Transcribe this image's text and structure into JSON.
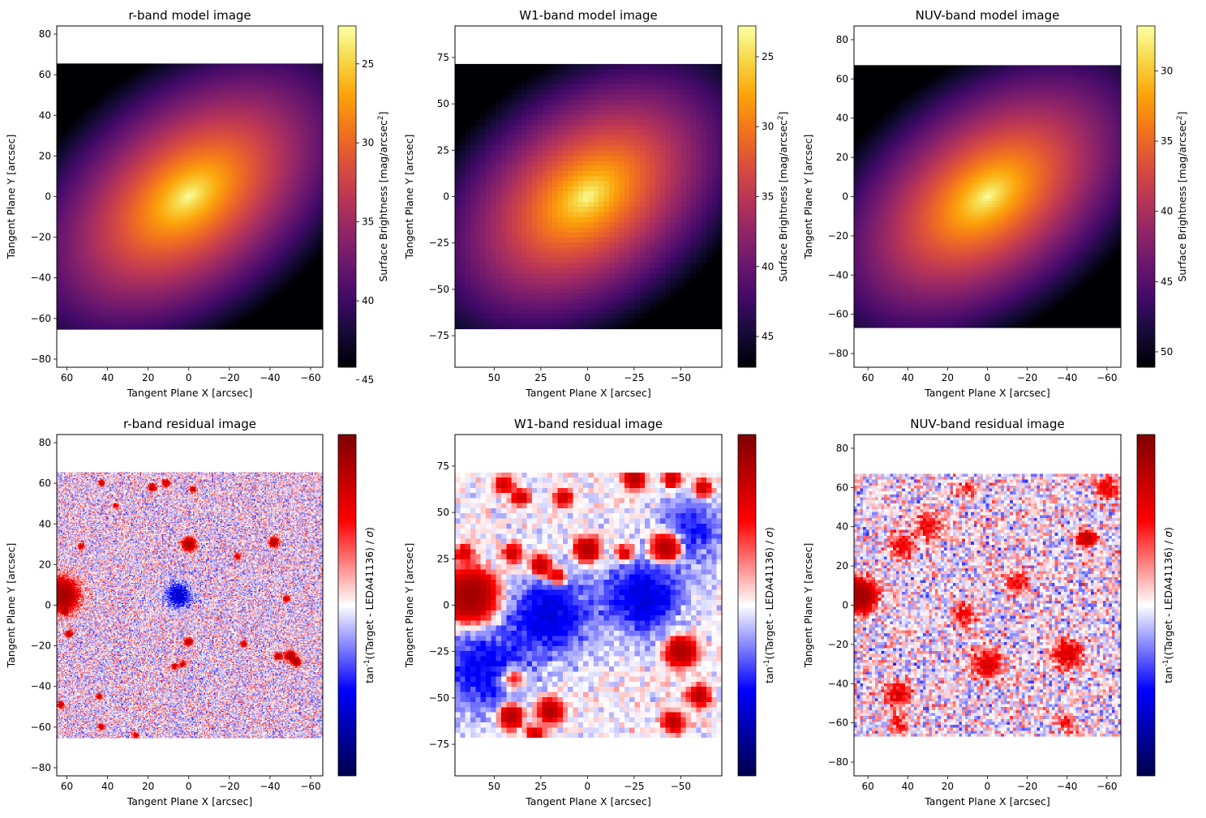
{
  "chart_data": [
    {
      "type": "heatmap",
      "title": "r-band model image",
      "xlabel": "Tangent Plane X [arcsec]",
      "ylabel": "Tangent Plane Y [arcsec]",
      "xlim": [
        65,
        -66
      ],
      "ylim": [
        -84,
        84
      ],
      "extent": {
        "x": [
          65,
          -66
        ],
        "y": [
          -65.5,
          65.5
        ]
      },
      "xticks": [
        60,
        40,
        20,
        0,
        -20,
        -40,
        -60
      ],
      "xtick_labels": [
        "60",
        "40",
        "20",
        "0",
        "−20",
        "−40",
        "−60"
      ],
      "yticks": [
        -80,
        -60,
        -40,
        -20,
        0,
        20,
        40,
        60,
        80
      ],
      "ytick_labels": [
        "−80",
        "−60",
        "−40",
        "−20",
        "0",
        "20",
        "40",
        "60",
        "80"
      ],
      "colorbar": {
        "colormap": "inferno",
        "label": "Surface Brightness [mag/arcsec$^2$]",
        "inverted": true,
        "range": [
          44.2,
          22.6
        ],
        "ticks": [
          25,
          30,
          35,
          40,
          45
        ],
        "tick_labels": [
          "25",
          "30",
          "35",
          "40",
          "45"
        ]
      },
      "model": {
        "center": [
          0,
          0
        ],
        "peak_mag": 22.6,
        "position_angle_deg": 38,
        "axis_ratio": 0.6
      },
      "pixel_scale": 1.0
    },
    {
      "type": "heatmap",
      "title": "W1-band model image",
      "xlabel": "Tangent Plane X [arcsec]",
      "ylabel": "Tangent Plane Y [arcsec]",
      "xlim": [
        71,
        -72
      ],
      "ylim": [
        -92,
        92
      ],
      "extent": {
        "x": [
          71,
          -72
        ],
        "y": [
          -71.5,
          71.5
        ]
      },
      "xticks": [
        50,
        25,
        0,
        -25,
        -50
      ],
      "xtick_labels": [
        "50",
        "25",
        "0",
        "−25",
        "−50"
      ],
      "yticks": [
        -75,
        -50,
        -25,
        0,
        25,
        50,
        75
      ],
      "ytick_labels": [
        "−75",
        "−50",
        "−25",
        "0",
        "25",
        "50",
        "75"
      ],
      "colorbar": {
        "colormap": "inferno",
        "label": "Surface Brightness [mag/arcsec$^2$]",
        "inverted": true,
        "range": [
          47.2,
          22.8
        ],
        "ticks": [
          25,
          30,
          35,
          40,
          45
        ],
        "tick_labels": [
          "25",
          "30",
          "35",
          "40",
          "45"
        ]
      },
      "model": {
        "center": [
          0,
          0
        ],
        "peak_mag": 22.8,
        "position_angle_deg": 38,
        "axis_ratio": 0.65
      },
      "pixel_scale": 2.75
    },
    {
      "type": "heatmap",
      "title": "NUV-band model image",
      "xlabel": "Tangent Plane X [arcsec]",
      "ylabel": "Tangent Plane Y [arcsec]",
      "xlim": [
        67,
        -67
      ],
      "ylim": [
        -87,
        87
      ],
      "extent": {
        "x": [
          67,
          -67
        ],
        "y": [
          -67,
          67
        ]
      },
      "xticks": [
        60,
        40,
        20,
        0,
        -20,
        -40,
        -60
      ],
      "xtick_labels": [
        "60",
        "40",
        "20",
        "0",
        "−20",
        "−40",
        "−60"
      ],
      "yticks": [
        -80,
        -60,
        -40,
        -20,
        0,
        20,
        40,
        60,
        80
      ],
      "ytick_labels": [
        "−80",
        "−60",
        "−40",
        "−20",
        "0",
        "20",
        "40",
        "60",
        "80"
      ],
      "colorbar": {
        "colormap": "inferno",
        "label": "Surface Brightness [mag/arcsec$^2$]",
        "inverted": true,
        "range": [
          51.1,
          26.8
        ],
        "ticks": [
          30,
          35,
          40,
          45,
          50
        ],
        "tick_labels": [
          "30",
          "35",
          "40",
          "45",
          "50"
        ]
      },
      "model": {
        "center": [
          0,
          0
        ],
        "peak_mag": 26.8,
        "position_angle_deg": 38,
        "axis_ratio": 0.6
      },
      "pixel_scale": 1.5
    },
    {
      "type": "heatmap",
      "title": "r-band residual image",
      "xlabel": "Tangent Plane X [arcsec]",
      "ylabel": "Tangent Plane Y [arcsec]",
      "xlim": [
        65,
        -66
      ],
      "ylim": [
        -84,
        84
      ],
      "extent": {
        "x": [
          65,
          -66
        ],
        "y": [
          -65.5,
          65.5
        ]
      },
      "xticks": [
        60,
        40,
        20,
        0,
        -20,
        -40,
        -60
      ],
      "xtick_labels": [
        "60",
        "40",
        "20",
        "0",
        "−20",
        "−40",
        "−60"
      ],
      "yticks": [
        -80,
        -60,
        -40,
        -20,
        0,
        20,
        40,
        60,
        80
      ],
      "ytick_labels": [
        "−80",
        "−60",
        "−40",
        "−20",
        "0",
        "20",
        "40",
        "60",
        "80"
      ],
      "colorbar": {
        "colormap": "seismic",
        "label": "tan$^{-1}$((Target - LEDA41136) / $\\sigma$)",
        "range": [
          -1.571,
          1.571
        ],
        "ticks": [],
        "tick_labels": []
      },
      "residual": {
        "noise": 0.55,
        "sources": [
          {
            "x": 63,
            "y": 5,
            "amp": 1.6,
            "r": 5
          },
          {
            "x": 0,
            "y": 30,
            "amp": 1.4,
            "r": 2
          },
          {
            "x": -42,
            "y": 31,
            "amp": 1.2,
            "r": 1.5
          },
          {
            "x": 0,
            "y": -18,
            "amp": 1.1,
            "r": 1.2
          },
          {
            "x": -50,
            "y": -25,
            "amp": 1.2,
            "r": 1.6
          },
          {
            "x": -53,
            "y": -28,
            "amp": 1.1,
            "r": 1.4
          },
          {
            "x": -44,
            "y": -25,
            "amp": 1.0,
            "r": 1.2
          },
          {
            "x": 18,
            "y": 58,
            "amp": 1.0,
            "r": 1.2
          },
          {
            "x": 11,
            "y": 60,
            "amp": 1.0,
            "r": 1.2
          },
          {
            "x": -2,
            "y": 57,
            "amp": 0.9,
            "r": 1
          },
          {
            "x": 43,
            "y": 60,
            "amp": 0.9,
            "r": 1
          },
          {
            "x": 59,
            "y": -14,
            "amp": 1.0,
            "r": 1.2
          },
          {
            "x": 61,
            "y": -3,
            "amp": 0.9,
            "r": 1
          },
          {
            "x": 63,
            "y": -49,
            "amp": 1.0,
            "r": 1.1
          },
          {
            "x": 43,
            "y": -60,
            "amp": 0.9,
            "r": 1
          },
          {
            "x": 3,
            "y": -29,
            "amp": 0.9,
            "r": 1
          },
          {
            "x": 7,
            "y": -30,
            "amp": 0.9,
            "r": 1
          },
          {
            "x": -27,
            "y": -19,
            "amp": 0.9,
            "r": 1
          },
          {
            "x": -48,
            "y": 3,
            "amp": 0.9,
            "r": 1
          },
          {
            "x": 44,
            "y": -45,
            "amp": 0.8,
            "r": 1
          },
          {
            "x": 26,
            "y": -64,
            "amp": 0.8,
            "r": 1
          },
          {
            "x": -24,
            "y": 24,
            "amp": 0.8,
            "r": 1
          },
          {
            "x": 53,
            "y": 29,
            "amp": 0.8,
            "r": 1
          },
          {
            "x": 36,
            "y": 49,
            "amp": 0.6,
            "r": 1
          },
          {
            "x": 5,
            "y": 5,
            "amp": -0.6,
            "r": 4
          }
        ]
      },
      "pixel_scale": 0.5
    },
    {
      "type": "heatmap",
      "title": "W1-band residual image",
      "xlabel": "Tangent Plane X [arcsec]",
      "ylabel": "Tangent Plane Y [arcsec]",
      "xlim": [
        71,
        -72
      ],
      "ylim": [
        -92,
        92
      ],
      "extent": {
        "x": [
          71,
          -72
        ],
        "y": [
          -71.5,
          71.5
        ]
      },
      "xticks": [
        50,
        25,
        0,
        -25,
        -50
      ],
      "xtick_labels": [
        "50",
        "25",
        "0",
        "−25",
        "−50"
      ],
      "yticks": [
        -75,
        -50,
        -25,
        0,
        25,
        50,
        75
      ],
      "ytick_labels": [
        "−75",
        "−50",
        "−25",
        "0",
        "25",
        "50",
        "75"
      ],
      "colorbar": {
        "colormap": "seismic",
        "label": "tan$^{-1}$((Target - LEDA41136) / $\\sigma$)",
        "range": [
          -1.571,
          1.571
        ],
        "ticks": [],
        "tick_labels": []
      },
      "residual": {
        "noise": 0.22,
        "sources": [
          {
            "x": 63,
            "y": 5,
            "amp": 1.8,
            "r": 8
          },
          {
            "x": 0,
            "y": 30,
            "amp": 1.3,
            "r": 4
          },
          {
            "x": -42,
            "y": 31,
            "amp": 1.3,
            "r": 5
          },
          {
            "x": -50,
            "y": -25,
            "amp": 1.3,
            "r": 5
          },
          {
            "x": 41,
            "y": -60,
            "amp": 1.2,
            "r": 4
          },
          {
            "x": 20,
            "y": -57,
            "amp": 1.2,
            "r": 4
          },
          {
            "x": 25,
            "y": 21,
            "amp": 1.0,
            "r": 3.5
          },
          {
            "x": -25,
            "y": 68,
            "amp": 1.1,
            "r": 3.5
          },
          {
            "x": -45,
            "y": 68,
            "amp": 0.9,
            "r": 3
          },
          {
            "x": -62,
            "y": 63,
            "amp": 0.9,
            "r": 3
          },
          {
            "x": 45,
            "y": 65,
            "amp": 0.8,
            "r": 3
          },
          {
            "x": 36,
            "y": 58,
            "amp": 0.8,
            "r": 3
          },
          {
            "x": 13,
            "y": 58,
            "amp": 0.8,
            "r": 3
          },
          {
            "x": -20,
            "y": 28,
            "amp": 0.8,
            "r": 3
          },
          {
            "x": 40,
            "y": 28,
            "amp": 0.8,
            "r": 3
          },
          {
            "x": 16,
            "y": 15,
            "amp": 0.8,
            "r": 3
          },
          {
            "x": 66,
            "y": 28,
            "amp": 0.7,
            "r": 3
          },
          {
            "x": -60,
            "y": -49,
            "amp": 1.1,
            "r": 3.5
          },
          {
            "x": -46,
            "y": -63,
            "amp": 1.0,
            "r": 3.5
          },
          {
            "x": 28,
            "y": -70,
            "amp": 0.8,
            "r": 3
          },
          {
            "x": 40,
            "y": -40,
            "amp": 0.6,
            "r": 4
          },
          {
            "x": 20,
            "y": -5,
            "amp": -0.5,
            "r": 14
          },
          {
            "x": -30,
            "y": 5,
            "amp": -0.5,
            "r": 14
          },
          {
            "x": 55,
            "y": -35,
            "amp": -0.4,
            "r": 16
          },
          {
            "x": -55,
            "y": 40,
            "amp": -0.35,
            "r": 12
          }
        ]
      },
      "pixel_scale": 2.75
    },
    {
      "type": "heatmap",
      "title": "NUV-band residual image",
      "xlabel": "Tangent Plane X [arcsec]",
      "ylabel": "Tangent Plane Y [arcsec]",
      "xlim": [
        67,
        -67
      ],
      "ylim": [
        -87,
        87
      ],
      "extent": {
        "x": [
          67,
          -67
        ],
        "y": [
          -67,
          67
        ]
      },
      "xticks": [
        60,
        40,
        20,
        0,
        -20,
        -40,
        -60
      ],
      "xtick_labels": [
        "60",
        "40",
        "20",
        "0",
        "−20",
        "−40",
        "−60"
      ],
      "yticks": [
        -80,
        -60,
        -40,
        -20,
        0,
        20,
        40,
        60,
        80
      ],
      "ytick_labels": [
        "−80",
        "−60",
        "−40",
        "−20",
        "0",
        "20",
        "40",
        "60",
        "80"
      ],
      "colorbar": {
        "colormap": "seismic",
        "label": "tan$^{-1}$((Target - LEDA41136) / $\\sigma$)",
        "range": [
          -1.571,
          1.571
        ],
        "ticks": [],
        "tick_labels": []
      },
      "residual": {
        "noise": 0.5,
        "sources": [
          {
            "x": 64,
            "y": 5,
            "amp": 1.7,
            "r": 5
          },
          {
            "x": -50,
            "y": 34,
            "amp": 1.0,
            "r": 3
          },
          {
            "x": 0,
            "y": -30,
            "amp": 0.6,
            "r": 5
          },
          {
            "x": -40,
            "y": -25,
            "amp": 0.6,
            "r": 5
          },
          {
            "x": 45,
            "y": -45,
            "amp": 0.6,
            "r": 4
          },
          {
            "x": 43,
            "y": 30,
            "amp": 0.5,
            "r": 4
          },
          {
            "x": -60,
            "y": 60,
            "amp": 0.5,
            "r": 4
          },
          {
            "x": 12,
            "y": -5,
            "amp": 0.4,
            "r": 4
          },
          {
            "x": -15,
            "y": 12,
            "amp": 0.4,
            "r": 4
          },
          {
            "x": 30,
            "y": 40,
            "amp": 0.4,
            "r": 5
          },
          {
            "x": 45,
            "y": -60,
            "amp": 0.4,
            "r": 3
          },
          {
            "x": -40,
            "y": -60,
            "amp": 0.4,
            "r": 3
          },
          {
            "x": 10,
            "y": 60,
            "amp": 0.35,
            "r": 3
          }
        ]
      },
      "pixel_scale": 1.5
    }
  ]
}
